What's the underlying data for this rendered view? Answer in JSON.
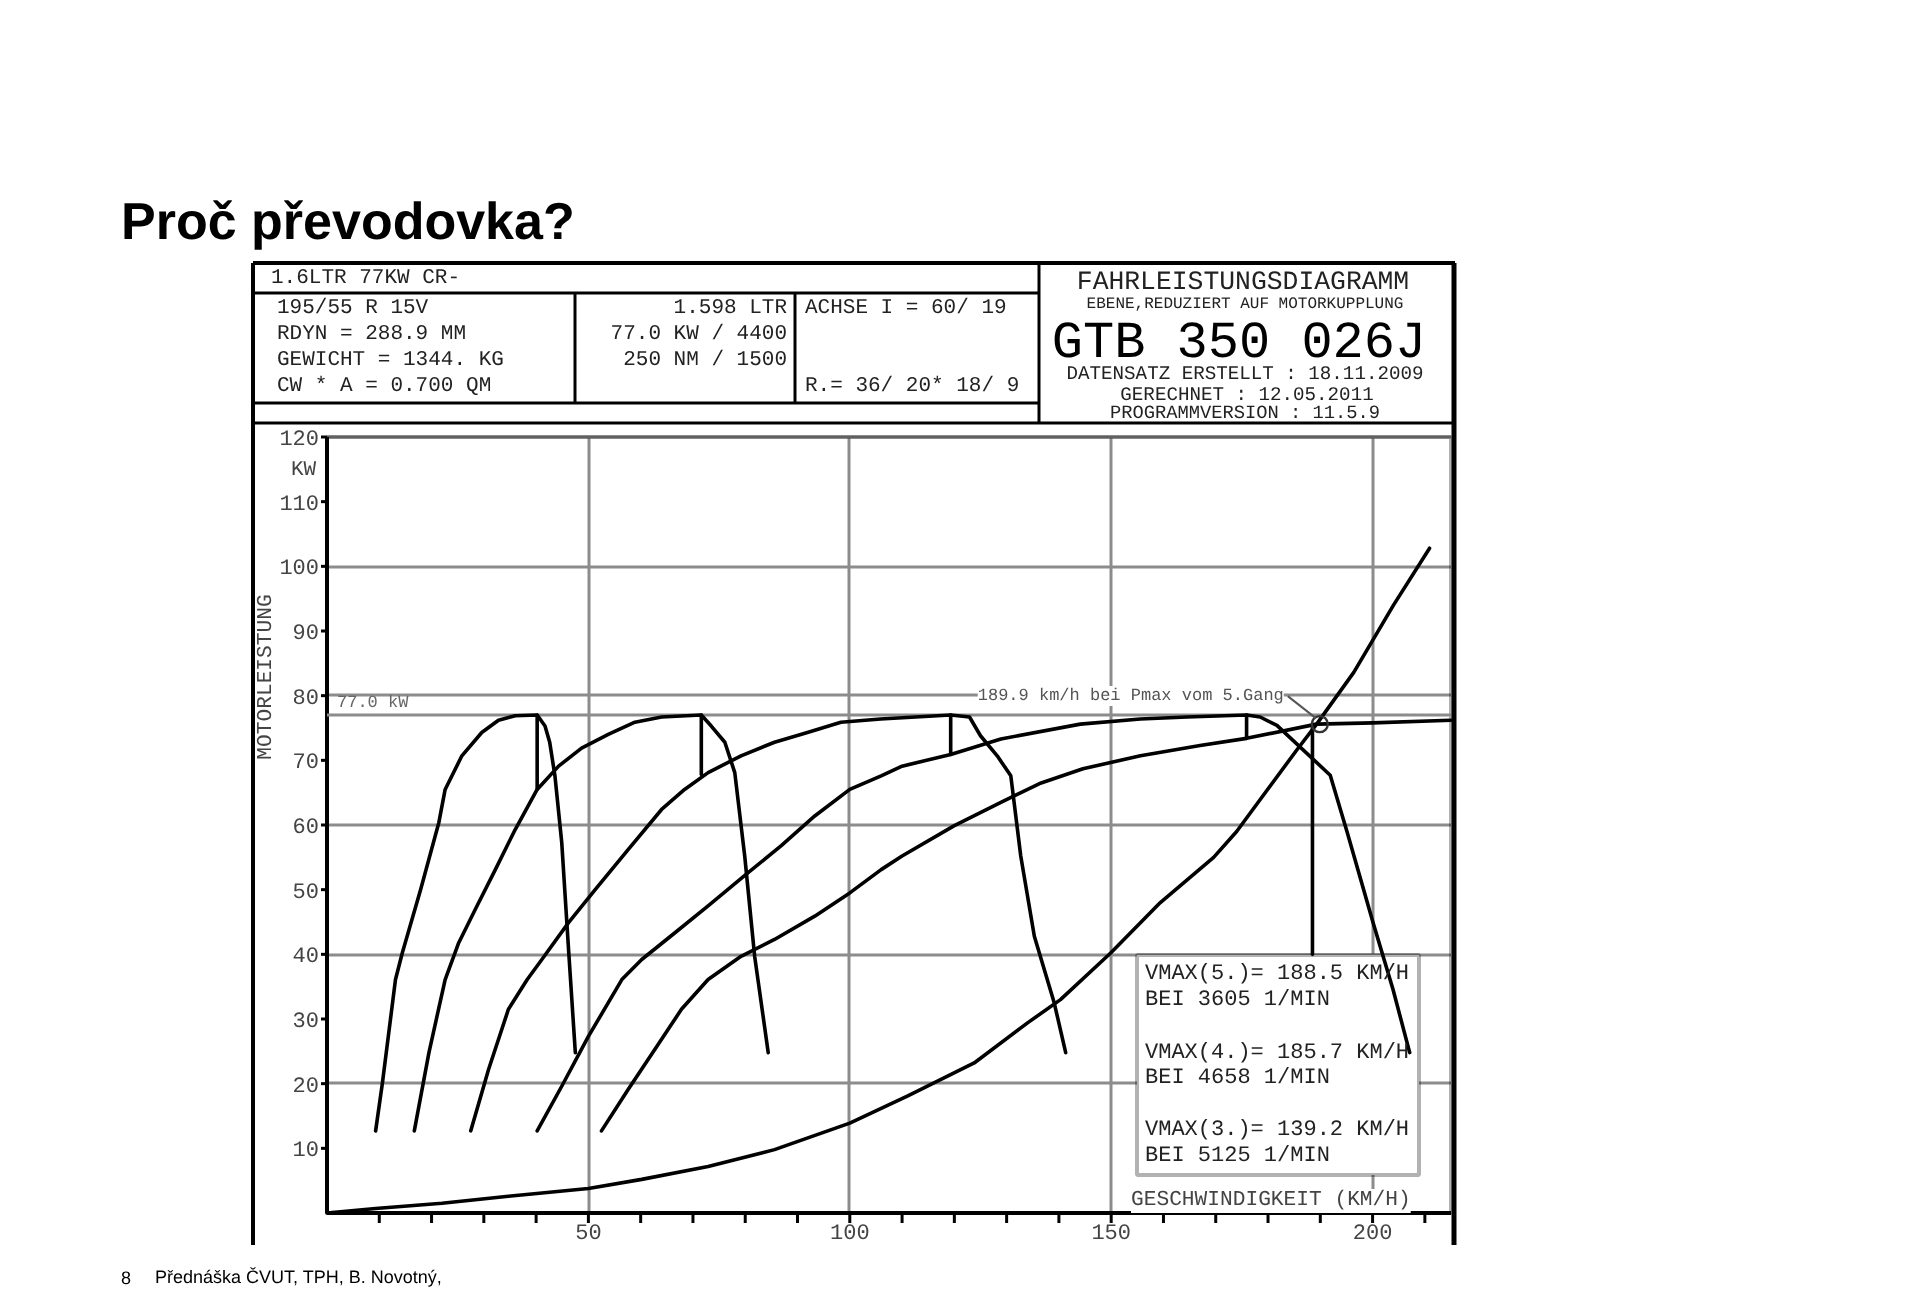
{
  "chart_data": {
    "type": "line",
    "title": "Proč převodovka?",
    "subtitle": "FAHRLEISTUNGSDIAGRAMM",
    "xlabel": "GESCHWINDIGKEIT (KM/H)",
    "ylabel": "MOTORLEISTUNG",
    "xlim": [
      0,
      215
    ],
    "ylim": [
      0,
      120
    ],
    "xticks": [
      {
        "value": 10,
        "label": null
      },
      {
        "value": 20,
        "label": null
      },
      {
        "value": 30,
        "label": null
      },
      {
        "value": 40,
        "label": null
      },
      50,
      {
        "value": 60,
        "label": null
      },
      {
        "value": 70,
        "label": null
      },
      {
        "value": 80,
        "label": null
      },
      {
        "value": 90,
        "label": null
      },
      100,
      {
        "value": 110,
        "label": null
      },
      {
        "value": 120,
        "label": null
      },
      {
        "value": 130,
        "label": null
      },
      {
        "value": 140,
        "label": null
      },
      150,
      {
        "value": 160,
        "label": null
      },
      {
        "value": 170,
        "label": null
      },
      {
        "value": 180,
        "label": null
      },
      {
        "value": 190,
        "label": null
      },
      200,
      {
        "value": 210,
        "label": null
      }
    ],
    "yticks": [
      10,
      20,
      30,
      40,
      50,
      60,
      70,
      80,
      90,
      100,
      110,
      120
    ],
    "grid": true,
    "series": [
      {
        "color": "#000000",
        "x": [
          9.3,
          10.6,
          13.1,
          14.4,
          17.9,
          21.4,
          22.6,
          25.8,
          29.6,
          32.8,
          36.0,
          40.2,
          41.7,
          42.6,
          43.6,
          44.9,
          46.2,
          47.5
        ],
        "values": [
          12.7,
          20.1,
          36.1,
          40.2,
          50.0,
          60.4,
          65.5,
          70.7,
          74.3,
          76.2,
          76.9,
          77.0,
          75.3,
          72.8,
          67.6,
          57.3,
          40.8,
          24.8
        ]
      },
      {
        "color": "#000000",
        "x": [
          16.7,
          19.5,
          22.6,
          25.2,
          28.4,
          32.2,
          36.0,
          40.2,
          44.3,
          48.7,
          53.8,
          58.9,
          64.0,
          71.6,
          73.5,
          76.1,
          78.0,
          79.9,
          81.8,
          84.4
        ],
        "values": [
          12.7,
          24.8,
          36.1,
          41.8,
          47.0,
          53.1,
          59.3,
          65.5,
          69.1,
          71.9,
          74.0,
          75.9,
          76.7,
          77.0,
          75.3,
          72.8,
          68.1,
          55.2,
          39.7,
          24.8
        ]
      },
      {
        "color": "#000000",
        "x": [
          27.5,
          30.9,
          34.7,
          38.3,
          41.1,
          46.2,
          51.3,
          57.6,
          64.0,
          68.4,
          72.9,
          79.2,
          85.6,
          91.9,
          98.3,
          105.9,
          119.3,
          122.9,
          125.0,
          128.2,
          130.8,
          132.7,
          135.3,
          139.1,
          141.3
        ],
        "values": [
          12.7,
          22.2,
          31.5,
          36.1,
          39.2,
          44.9,
          50.0,
          56.2,
          62.4,
          65.5,
          68.1,
          70.7,
          72.8,
          74.3,
          75.9,
          76.4,
          77.0,
          76.7,
          73.8,
          70.7,
          67.6,
          55.2,
          42.8,
          32.5,
          24.8
        ]
      },
      {
        "color": "#000000",
        "x": [
          40.2,
          44.9,
          50.0,
          56.4,
          60.2,
          66.5,
          72.9,
          80.5,
          86.9,
          93.3,
          100.0,
          106.0,
          110.0,
          119.3,
          128.9,
          144.1,
          155.6,
          164.5,
          175.9,
          178.5,
          181.7,
          191.9,
          195.1,
          200.1,
          203.9,
          207.1
        ],
        "values": [
          12.7,
          19.6,
          27.3,
          36.1,
          39.2,
          43.3,
          47.5,
          52.6,
          56.8,
          61.4,
          65.5,
          67.6,
          69.1,
          70.9,
          73.3,
          75.6,
          76.4,
          76.7,
          77.0,
          76.7,
          75.4,
          67.7,
          59.0,
          44.9,
          34.6,
          24.8
        ]
      },
      {
        "color": "#000000",
        "x": [
          52.5,
          57.6,
          62.7,
          67.8,
          72.9,
          79.2,
          85.6,
          93.3,
          100.0,
          106.0,
          110.0,
          120.0,
          128.9,
          136.6,
          144.6,
          155.6,
          167.0,
          175.9,
          189.3,
          200.0,
          215.0
        ],
        "values": [
          12.7,
          19.1,
          25.3,
          31.5,
          36.1,
          39.7,
          42.3,
          45.9,
          49.5,
          53.1,
          55.2,
          59.9,
          63.5,
          66.5,
          68.7,
          70.7,
          72.3,
          73.4,
          75.6,
          75.8,
          76.2
        ]
      },
      {
        "color": "#000000",
        "x": [
          0,
          9.3,
          22.0,
          34.7,
          50.0,
          60.2,
          72.9,
          85.6,
          100.0,
          111.1,
          123.8,
          134.0,
          140.3,
          149.9,
          159.4,
          169.6,
          174.0,
          185.5,
          189.3,
          196.4,
          204.0,
          210.9
        ],
        "values": [
          0,
          0.7,
          1.5,
          2.6,
          3.8,
          5.2,
          7.2,
          9.8,
          13.9,
          18.1,
          23.2,
          29.4,
          33.0,
          40.2,
          48.0,
          55.0,
          59.0,
          71.6,
          75.6,
          83.6,
          94.0,
          102.8
        ]
      },
      {
        "color": "#000000",
        "x": [
          40.2,
          40.2
        ],
        "values": [
          77.0,
          65.5
        ]
      },
      {
        "color": "#000000",
        "x": [
          71.6,
          71.6
        ],
        "values": [
          77.0,
          67.8
        ]
      },
      {
        "color": "#000000",
        "x": [
          119.3,
          119.3
        ],
        "values": [
          77.0,
          70.9
        ]
      },
      {
        "color": "#000000",
        "x": [
          175.9,
          175.9
        ],
        "values": [
          77.0,
          73.4
        ]
      },
      {
        "color": "#000000",
        "x": [
          188.5,
          188.5
        ],
        "values": [
          75.6,
          40.0
        ]
      }
    ],
    "ref_lines": [
      {
        "axis": "y",
        "value": 77.0,
        "label": "77.0 kW",
        "color": "#8c8c8c"
      }
    ],
    "annotations": [
      "1.6LTR 77KW CR-",
      "195/55 R 15V",
      "RDYN = 288.9 MM",
      "GEWICHT = 1344. KG",
      "CW * A = 0.700 QM",
      "1.598 LTR",
      "77.0 KW / 4400",
      "250 NM / 1500",
      "ACHSE I = 60/ 19",
      "R.= 36/ 20* 18/ 9",
      "EBENE,REDUZIERT AUF MOTORKUPPLUNG",
      "GTB 350 026J",
      "DATENSATZ ERSTELLT : 18.11.2009",
      "GERECHNET : 12.05.2011",
      "PROGRAMMVERSION : 11.5.9",
      "KW",
      {
        "text": "189.9 km/h bei Pmax vom 5.Gang",
        "x": 189.9,
        "y": 75.6
      },
      "VMAX(5.)= 188.5 KM/H",
      "BEI 3605 1/MIN",
      "VMAX(4.)= 185.7 KM/H",
      "BEI 4658 1/MIN",
      "VMAX(3.)= 139.2 KM/H",
      "BEI 5125 1/MIN",
      "8",
      "Přednáška ČVUT, TPH, B. Novotný,"
    ]
  }
}
